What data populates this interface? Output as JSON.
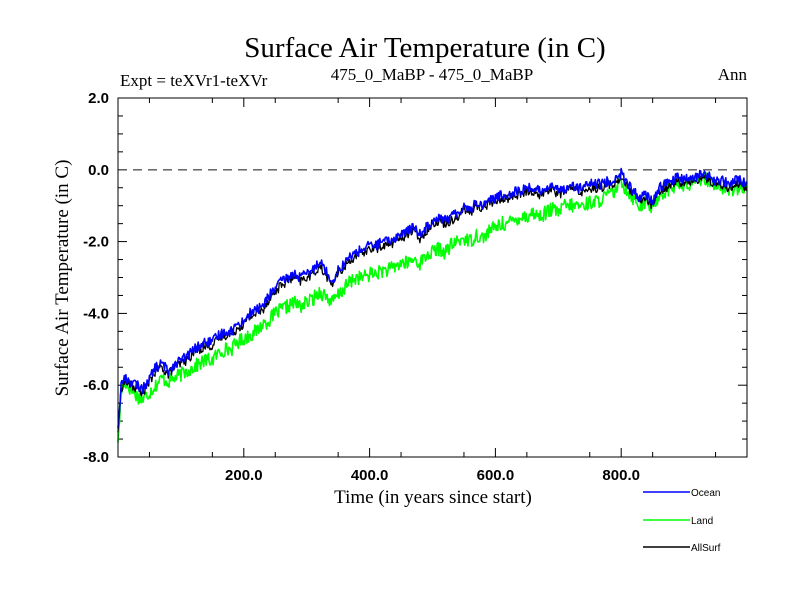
{
  "chart_data": {
    "type": "line",
    "title": "Surface Air Temperature (in C)",
    "subtitle_left": "Expt = teXVr1-teXVr",
    "subtitle_center": "475_0_MaBP - 475_0_MaBP",
    "subtitle_right": "Ann",
    "xlabel": "Time (in years since start)",
    "ylabel": "Surface Air Temperature (in C)",
    "xlim": [
      0,
      1000
    ],
    "ylim": [
      -8,
      2
    ],
    "x_ticks": [
      {
        "value": 200,
        "label": "200.0"
      },
      {
        "value": 400,
        "label": "400.0"
      },
      {
        "value": 600,
        "label": "600.0"
      },
      {
        "value": 800,
        "label": "800.0"
      }
    ],
    "y_ticks": [
      {
        "value": 2,
        "label": "2.0"
      },
      {
        "value": 0,
        "label": "0.0"
      },
      {
        "value": -2,
        "label": "-2.0"
      },
      {
        "value": -4,
        "label": "-4.0"
      },
      {
        "value": -6,
        "label": "-6.0"
      },
      {
        "value": -8,
        "label": "-8.0"
      }
    ],
    "reference_line": {
      "y": 0,
      "style": "dashed"
    },
    "series": [
      {
        "name": "Ocean",
        "color": "#0000ff",
        "x": [
          0,
          5,
          10,
          20,
          30,
          40,
          50,
          60,
          70,
          80,
          90,
          100,
          110,
          120,
          130,
          140,
          150,
          160,
          170,
          180,
          190,
          200,
          210,
          220,
          230,
          240,
          250,
          260,
          270,
          280,
          290,
          300,
          310,
          320,
          330,
          340,
          350,
          360,
          370,
          380,
          390,
          400,
          410,
          420,
          430,
          440,
          450,
          460,
          470,
          480,
          490,
          500,
          510,
          520,
          530,
          540,
          550,
          560,
          570,
          580,
          590,
          600,
          610,
          620,
          630,
          640,
          650,
          660,
          670,
          680,
          690,
          700,
          710,
          720,
          730,
          740,
          750,
          760,
          770,
          780,
          790,
          800,
          810,
          820,
          830,
          840,
          850,
          860,
          870,
          880,
          890,
          900,
          910,
          920,
          930,
          940,
          950,
          960,
          970,
          980,
          990,
          1000
        ],
        "values": [
          -7.2,
          -6.0,
          -5.8,
          -5.9,
          -6.0,
          -6.1,
          -5.8,
          -5.5,
          -5.4,
          -5.6,
          -5.4,
          -5.3,
          -5.2,
          -5.0,
          -4.9,
          -4.8,
          -4.8,
          -4.6,
          -4.5,
          -4.5,
          -4.3,
          -4.2,
          -4.0,
          -3.9,
          -3.8,
          -3.5,
          -3.3,
          -3.1,
          -3.0,
          -2.9,
          -3.0,
          -2.9,
          -2.8,
          -2.5,
          -2.8,
          -3.1,
          -2.8,
          -2.6,
          -2.4,
          -2.3,
          -2.2,
          -2.1,
          -2.1,
          -2.0,
          -2.0,
          -1.9,
          -1.8,
          -1.7,
          -1.6,
          -1.8,
          -1.6,
          -1.4,
          -1.3,
          -1.4,
          -1.3,
          -1.2,
          -1.0,
          -1.1,
          -0.9,
          -1.0,
          -0.8,
          -0.8,
          -0.7,
          -0.7,
          -0.6,
          -0.6,
          -0.5,
          -0.5,
          -0.6,
          -0.5,
          -0.4,
          -0.6,
          -0.5,
          -0.4,
          -0.5,
          -0.5,
          -0.4,
          -0.4,
          -0.4,
          -0.3,
          -0.3,
          -0.1,
          -0.4,
          -0.6,
          -0.8,
          -0.7,
          -0.9,
          -0.5,
          -0.4,
          -0.3,
          -0.2,
          -0.3,
          -0.2,
          -0.2,
          -0.1,
          -0.2,
          -0.3,
          -0.3,
          -0.4,
          -0.3,
          -0.3,
          -0.4
        ]
      },
      {
        "name": "Land",
        "color": "#00ff00",
        "x": [
          0,
          5,
          10,
          20,
          30,
          40,
          50,
          60,
          70,
          80,
          90,
          100,
          110,
          120,
          130,
          140,
          150,
          160,
          170,
          180,
          190,
          200,
          210,
          220,
          230,
          240,
          250,
          260,
          270,
          280,
          290,
          300,
          310,
          320,
          330,
          340,
          350,
          360,
          370,
          380,
          390,
          400,
          410,
          420,
          430,
          440,
          450,
          460,
          470,
          480,
          490,
          500,
          510,
          520,
          530,
          540,
          550,
          560,
          570,
          580,
          590,
          600,
          610,
          620,
          630,
          640,
          650,
          660,
          670,
          680,
          690,
          700,
          710,
          720,
          730,
          740,
          750,
          760,
          770,
          780,
          790,
          800,
          810,
          820,
          830,
          840,
          850,
          860,
          870,
          880,
          890,
          900,
          910,
          920,
          930,
          940,
          950,
          960,
          970,
          980,
          990,
          1000
        ],
        "values": [
          -7.6,
          -6.2,
          -5.9,
          -6.1,
          -6.3,
          -6.4,
          -6.2,
          -6.0,
          -5.8,
          -5.9,
          -5.8,
          -5.7,
          -5.6,
          -5.5,
          -5.4,
          -5.3,
          -5.3,
          -5.1,
          -5.0,
          -5.0,
          -4.8,
          -4.7,
          -4.6,
          -4.5,
          -4.3,
          -4.2,
          -4.0,
          -3.9,
          -3.8,
          -3.7,
          -3.8,
          -3.7,
          -3.6,
          -3.4,
          -3.5,
          -3.7,
          -3.5,
          -3.3,
          -3.1,
          -3.0,
          -3.0,
          -2.9,
          -2.9,
          -2.8,
          -2.8,
          -2.7,
          -2.6,
          -2.6,
          -2.5,
          -2.6,
          -2.4,
          -2.3,
          -2.2,
          -2.3,
          -2.1,
          -2.0,
          -1.9,
          -2.0,
          -1.8,
          -1.9,
          -1.7,
          -1.6,
          -1.5,
          -1.5,
          -1.4,
          -1.3,
          -1.3,
          -1.2,
          -1.3,
          -1.2,
          -1.1,
          -1.2,
          -1.0,
          -1.0,
          -1.0,
          -1.0,
          -0.9,
          -0.9,
          -0.8,
          -0.7,
          -0.6,
          -0.3,
          -0.6,
          -0.8,
          -1.0,
          -0.9,
          -1.1,
          -0.7,
          -0.6,
          -0.5,
          -0.4,
          -0.5,
          -0.4,
          -0.3,
          -0.2,
          -0.3,
          -0.4,
          -0.5,
          -0.6,
          -0.5,
          -0.5,
          -0.6
        ]
      },
      {
        "name": "AllSurf",
        "color": "#000000",
        "x": [
          0,
          5,
          10,
          20,
          30,
          40,
          50,
          60,
          70,
          80,
          90,
          100,
          110,
          120,
          130,
          140,
          150,
          160,
          170,
          180,
          190,
          200,
          210,
          220,
          230,
          240,
          250,
          260,
          270,
          280,
          290,
          300,
          310,
          320,
          330,
          340,
          350,
          360,
          370,
          380,
          390,
          400,
          410,
          420,
          430,
          440,
          450,
          460,
          470,
          480,
          490,
          500,
          510,
          520,
          530,
          540,
          550,
          560,
          570,
          580,
          590,
          600,
          610,
          620,
          630,
          640,
          650,
          660,
          670,
          680,
          690,
          700,
          710,
          720,
          730,
          740,
          750,
          760,
          770,
          780,
          790,
          800,
          810,
          820,
          830,
          840,
          850,
          860,
          870,
          880,
          890,
          900,
          910,
          920,
          930,
          940,
          950,
          960,
          970,
          980,
          990,
          1000
        ],
        "values": [
          -7.3,
          -6.1,
          -5.9,
          -6.0,
          -6.1,
          -6.2,
          -5.9,
          -5.6,
          -5.5,
          -5.7,
          -5.5,
          -5.4,
          -5.3,
          -5.1,
          -5.0,
          -4.9,
          -4.9,
          -4.7,
          -4.6,
          -4.6,
          -4.4,
          -4.3,
          -4.1,
          -4.0,
          -3.9,
          -3.6,
          -3.4,
          -3.2,
          -3.1,
          -3.0,
          -3.1,
          -3.0,
          -2.9,
          -2.7,
          -2.9,
          -3.2,
          -2.9,
          -2.7,
          -2.5,
          -2.4,
          -2.3,
          -2.2,
          -2.2,
          -2.1,
          -2.1,
          -2.0,
          -1.9,
          -1.8,
          -1.7,
          -1.9,
          -1.7,
          -1.5,
          -1.4,
          -1.5,
          -1.4,
          -1.3,
          -1.1,
          -1.2,
          -1.0,
          -1.1,
          -0.9,
          -0.9,
          -0.8,
          -0.8,
          -0.7,
          -0.7,
          -0.6,
          -0.6,
          -0.7,
          -0.6,
          -0.5,
          -0.7,
          -0.6,
          -0.5,
          -0.6,
          -0.6,
          -0.5,
          -0.5,
          -0.5,
          -0.4,
          -0.4,
          -0.2,
          -0.5,
          -0.7,
          -0.9,
          -0.8,
          -1.0,
          -0.6,
          -0.5,
          -0.4,
          -0.3,
          -0.4,
          -0.3,
          -0.3,
          -0.2,
          -0.3,
          -0.4,
          -0.4,
          -0.5,
          -0.4,
          -0.4,
          -0.5
        ]
      }
    ],
    "legend": {
      "placement": "bottom-right",
      "entries": [
        "Ocean",
        "Land",
        "AllSurf"
      ]
    }
  }
}
